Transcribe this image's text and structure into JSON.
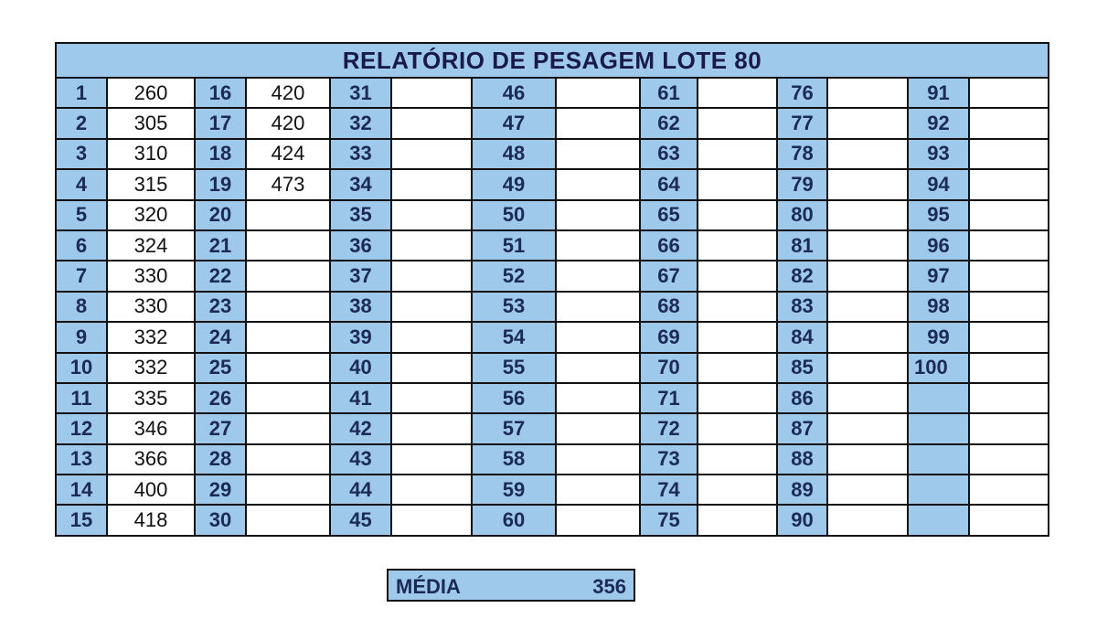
{
  "title": "RELATÓRIO DE PESAGEM LOTE 80",
  "weights": [
    "260",
    "305",
    "310",
    "315",
    "320",
    "324",
    "330",
    "330",
    "332",
    "332",
    "335",
    "346",
    "366",
    "400",
    "418",
    "420",
    "420",
    "424",
    "473"
  ],
  "total_numbers": 100,
  "rows_per_column": 15,
  "average": {
    "label": "MÉDIA",
    "value": "356"
  },
  "colors": {
    "header_fill": "#9ec9ea",
    "number_text": "#1c2a56",
    "border": "#111111"
  }
}
